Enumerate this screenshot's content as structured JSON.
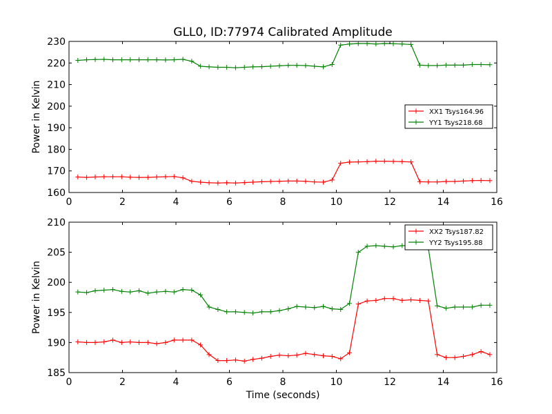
{
  "chart_data": [
    {
      "type": "line",
      "title": "GLL0, ID:77974 Calibrated Amplitude",
      "xlabel": "",
      "ylabel": "Power in Kelvin",
      "xlim": [
        0,
        16
      ],
      "ylim": [
        160,
        230
      ],
      "x_ticks": [
        0,
        2,
        4,
        6,
        8,
        10,
        12,
        14,
        16
      ],
      "y_ticks": [
        160,
        170,
        180,
        190,
        200,
        210,
        220,
        230
      ],
      "legend_position": "center-right",
      "x": [
        0.33,
        0.66,
        0.98,
        1.31,
        1.64,
        1.97,
        2.29,
        2.62,
        2.95,
        3.28,
        3.61,
        3.93,
        4.26,
        4.59,
        4.92,
        5.24,
        5.57,
        5.9,
        6.23,
        6.56,
        6.88,
        7.21,
        7.54,
        7.87,
        8.2,
        8.52,
        8.85,
        9.18,
        9.51,
        9.84,
        10.16,
        10.49,
        10.82,
        11.15,
        11.48,
        11.8,
        12.13,
        12.46,
        12.79,
        13.12,
        13.44,
        13.77,
        14.1,
        14.43,
        14.75,
        15.08,
        15.41,
        15.74
      ],
      "series": [
        {
          "name": "XX1 Tsys164.96",
          "color": "#ff0000",
          "values": [
            167.2,
            167.0,
            167.2,
            167.3,
            167.3,
            167.3,
            167.1,
            167.0,
            167.0,
            167.2,
            167.3,
            167.4,
            166.8,
            165.2,
            164.8,
            164.5,
            164.4,
            164.5,
            164.4,
            164.6,
            164.8,
            165.0,
            165.1,
            165.2,
            165.3,
            165.3,
            165.2,
            164.9,
            164.8,
            165.8,
            173.6,
            174.1,
            174.2,
            174.3,
            174.5,
            174.5,
            174.4,
            174.3,
            174.2,
            165.0,
            164.9,
            164.9,
            165.1,
            165.1,
            165.3,
            165.5,
            165.6,
            165.5
          ]
        },
        {
          "name": "YY1 Tsys218.68",
          "color": "#008000",
          "values": [
            221.2,
            221.5,
            221.6,
            221.7,
            221.5,
            221.5,
            221.5,
            221.5,
            221.5,
            221.5,
            221.4,
            221.5,
            221.7,
            220.8,
            218.5,
            218.2,
            218.0,
            218.0,
            217.8,
            218.0,
            218.2,
            218.3,
            218.5,
            218.7,
            218.9,
            218.9,
            218.8,
            218.5,
            218.2,
            219.3,
            228.3,
            228.8,
            229.0,
            229.0,
            228.8,
            229.0,
            228.9,
            228.8,
            228.6,
            219.0,
            218.8,
            218.8,
            219.0,
            219.0,
            219.0,
            219.3,
            219.3,
            219.2
          ]
        }
      ]
    },
    {
      "type": "line",
      "title": "",
      "xlabel": "Time (seconds)",
      "ylabel": "Power in Kelvin",
      "xlim": [
        0,
        16
      ],
      "ylim": [
        185,
        210
      ],
      "x_ticks": [
        0,
        2,
        4,
        6,
        8,
        10,
        12,
        14,
        16
      ],
      "y_ticks": [
        185,
        190,
        195,
        200,
        205,
        210
      ],
      "legend_position": "top-right",
      "x": [
        0.33,
        0.66,
        0.98,
        1.31,
        1.64,
        1.97,
        2.29,
        2.62,
        2.95,
        3.28,
        3.61,
        3.93,
        4.26,
        4.59,
        4.92,
        5.24,
        5.57,
        5.9,
        6.23,
        6.56,
        6.88,
        7.21,
        7.54,
        7.87,
        8.2,
        8.52,
        8.85,
        9.18,
        9.51,
        9.84,
        10.16,
        10.49,
        10.82,
        11.15,
        11.48,
        11.8,
        12.13,
        12.46,
        12.79,
        13.12,
        13.44,
        13.77,
        14.1,
        14.43,
        14.75,
        15.08,
        15.41,
        15.74
      ],
      "series": [
        {
          "name": "XX2 Tsys187.82",
          "color": "#ff0000",
          "values": [
            190.1,
            190.0,
            190.0,
            190.1,
            190.4,
            190.0,
            190.1,
            190.0,
            190.0,
            189.8,
            190.0,
            190.4,
            190.4,
            190.4,
            189.6,
            188.0,
            187.0,
            187.0,
            187.1,
            186.9,
            187.2,
            187.4,
            187.7,
            187.9,
            187.8,
            187.9,
            188.2,
            188.0,
            187.8,
            187.7,
            187.3,
            188.3,
            196.4,
            196.9,
            197.0,
            197.3,
            197.3,
            197.0,
            197.1,
            197.0,
            196.9,
            188.0,
            187.5,
            187.5,
            187.7,
            188.0,
            188.5,
            188.0
          ],
          "values_note": ""
        },
        {
          "name": "YY2 Tsys195.88",
          "color": "#008000",
          "values": [
            198.4,
            198.3,
            198.6,
            198.7,
            198.8,
            198.5,
            198.4,
            198.6,
            198.2,
            198.4,
            198.5,
            198.4,
            198.8,
            198.7,
            197.9,
            195.9,
            195.5,
            195.1,
            195.1,
            195.0,
            194.9,
            195.1,
            195.1,
            195.3,
            195.6,
            196.0,
            195.9,
            195.8,
            196.0,
            195.6,
            195.5,
            196.5,
            205.0,
            206.0,
            206.1,
            206.0,
            205.9,
            206.1,
            206.1,
            206.0,
            205.7,
            196.1,
            195.7,
            195.9,
            195.9,
            195.9,
            196.2,
            196.2
          ]
        }
      ]
    }
  ]
}
